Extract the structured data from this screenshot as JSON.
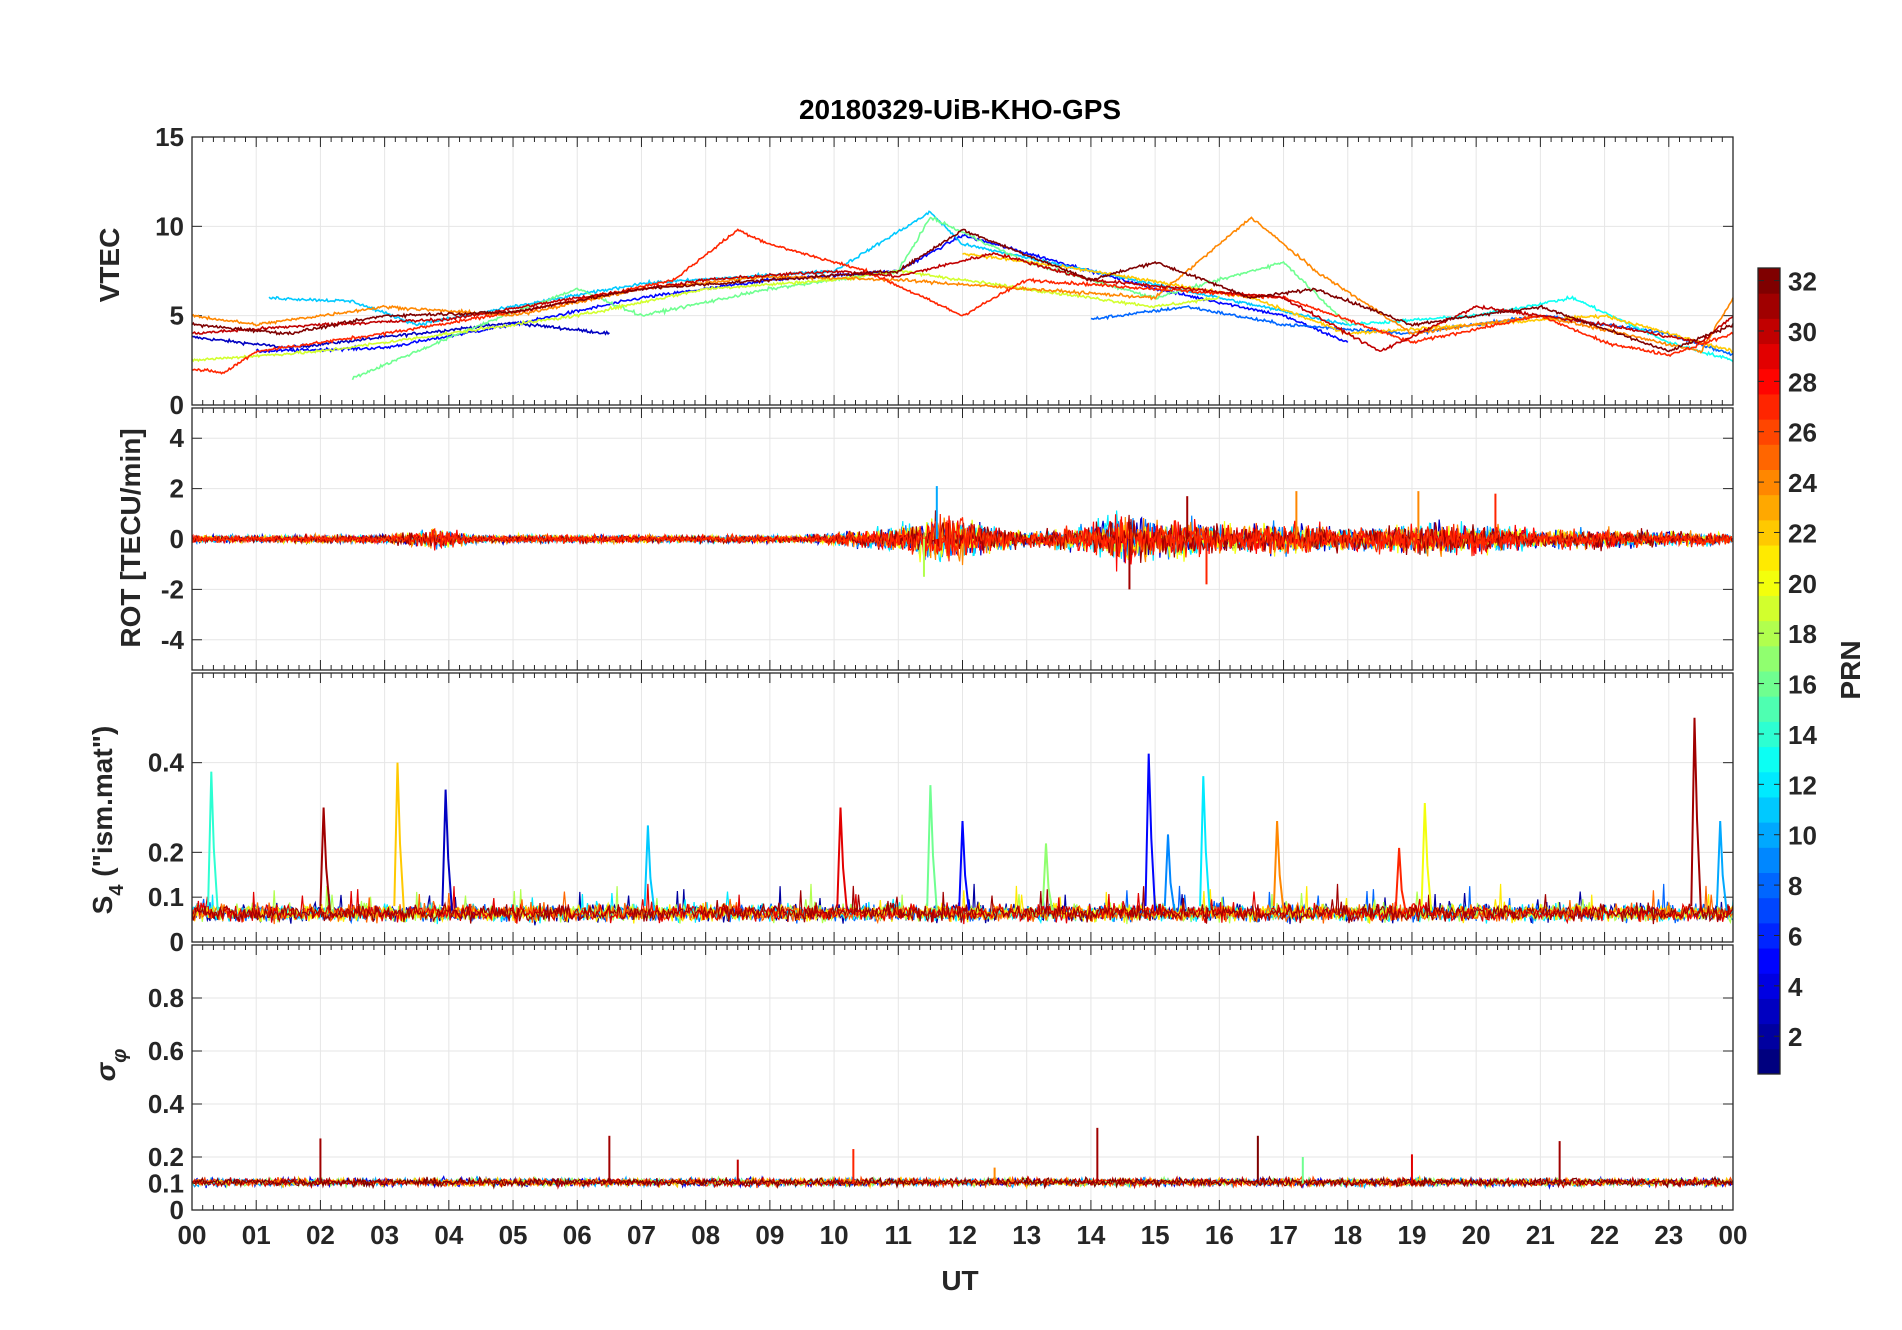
{
  "title": "20180329-UiB-KHO-GPS",
  "xaxis": {
    "label": "UT",
    "ticks": [
      "00",
      "01",
      "02",
      "03",
      "04",
      "05",
      "06",
      "07",
      "08",
      "09",
      "10",
      "11",
      "12",
      "13",
      "14",
      "15",
      "16",
      "17",
      "18",
      "19",
      "20",
      "21",
      "22",
      "23",
      "00"
    ],
    "range_hours": [
      0,
      24
    ]
  },
  "colorbar": {
    "label": "PRN",
    "range": [
      1,
      32
    ],
    "ticks": [
      "2",
      "4",
      "6",
      "8",
      "10",
      "12",
      "14",
      "16",
      "18",
      "20",
      "22",
      "24",
      "26",
      "28",
      "30",
      "32"
    ],
    "colormap": "jet",
    "colors": [
      "#00007f",
      "#0000ff",
      "#007fff",
      "#00ffff",
      "#7fff7f",
      "#ffff00",
      "#ff7f00",
      "#ff0000",
      "#7f0000"
    ]
  },
  "chart_data": [
    {
      "type": "line",
      "name": "vtec-panel",
      "ylabel": "VTEC",
      "ylim": [
        0,
        15
      ],
      "yticks": [
        "0",
        "5",
        "10",
        "15"
      ],
      "grid": true,
      "series_trend": [
        {
          "prn": 3,
          "x": [
            0.0,
            1.5,
            3.0,
            5.0,
            6.5
          ],
          "y": [
            3.8,
            3.2,
            3.8,
            4.6,
            4.0
          ]
        },
        {
          "prn": 5,
          "x": [
            1.0,
            3.0,
            5.0,
            7.0,
            9.0,
            11.0,
            12.0,
            13.0,
            15.0,
            17.0,
            18.0
          ],
          "y": [
            3.0,
            3.2,
            4.5,
            6.0,
            7.0,
            7.5,
            9.5,
            8.5,
            6.5,
            5.0,
            3.5
          ]
        },
        {
          "prn": 8,
          "x": [
            14.0,
            15.5,
            17.0,
            19.0,
            21.0,
            23.0,
            24.0
          ],
          "y": [
            4.8,
            5.5,
            4.5,
            4.0,
            5.0,
            4.0,
            2.8
          ]
        },
        {
          "prn": 11,
          "x": [
            1.2,
            2.5,
            3.5,
            5.0,
            7.0,
            10.0,
            11.5,
            12.0,
            14.0,
            16.0,
            18.0
          ],
          "y": [
            6.0,
            5.8,
            4.5,
            5.5,
            6.8,
            7.5,
            10.8,
            9.0,
            7.5,
            6.0,
            4.5
          ]
        },
        {
          "prn": 13,
          "x": [
            18.0,
            20.0,
            21.5,
            23.0,
            24.0
          ],
          "y": [
            4.5,
            5.0,
            6.0,
            3.5,
            2.5
          ]
        },
        {
          "prn": 16,
          "x": [
            2.5,
            4.5,
            6.0,
            7.0,
            9.0,
            11.0,
            11.5,
            13.0,
            15.0,
            17.0,
            18.0
          ],
          "y": [
            1.5,
            4.5,
            6.5,
            5.0,
            6.5,
            7.5,
            10.5,
            8.0,
            6.0,
            8.0,
            4.5
          ]
        },
        {
          "prn": 19,
          "x": [
            0.0,
            2.0,
            4.0,
            6.0,
            8.0,
            10.0,
            11.0,
            13.0,
            15.0,
            16.0
          ],
          "y": [
            2.5,
            3.0,
            4.0,
            5.0,
            6.5,
            7.0,
            7.5,
            6.5,
            5.5,
            6.0
          ]
        },
        {
          "prn": 22,
          "x": [
            12.0,
            14.0,
            16.5,
            18.0,
            20.0,
            22.0,
            24.0
          ],
          "y": [
            8.5,
            7.5,
            6.0,
            4.0,
            4.5,
            5.0,
            3.0
          ]
        },
        {
          "prn": 24,
          "x": [
            0.0,
            1.0,
            3.0,
            5.0,
            7.0,
            9.0,
            11.0,
            13.0,
            15.0,
            16.5,
            17.5,
            19.0,
            21.0,
            23.5,
            24.0
          ],
          "y": [
            5.0,
            4.5,
            5.5,
            5.0,
            6.5,
            7.2,
            7.0,
            6.5,
            6.0,
            10.5,
            7.5,
            4.0,
            5.0,
            3.0,
            6.0
          ]
        },
        {
          "prn": 27,
          "x": [
            0.0,
            0.5,
            1.0,
            3.0,
            5.5,
            7.5,
            8.5,
            9.0,
            10.5,
            12.0,
            13.0,
            15.0,
            17.0,
            19.0,
            21.0,
            22.0,
            23.0,
            24.0
          ],
          "y": [
            2.0,
            1.8,
            3.0,
            4.0,
            5.5,
            7.0,
            9.8,
            9.0,
            7.5,
            5.0,
            7.0,
            6.5,
            6.0,
            3.5,
            5.0,
            3.5,
            2.8,
            4.0
          ]
        },
        {
          "prn": 30,
          "x": [
            0.0,
            2.0,
            4.0,
            6.0,
            8.0,
            10.0,
            11.0,
            12.5,
            14.0,
            15.5,
            17.0,
            18.5,
            20.0,
            22.0,
            23.5,
            24.0
          ],
          "y": [
            4.0,
            4.5,
            4.8,
            6.0,
            7.0,
            7.5,
            7.2,
            8.5,
            7.0,
            6.5,
            6.0,
            3.0,
            5.5,
            4.5,
            3.5,
            5.0
          ]
        },
        {
          "prn": 32,
          "x": [
            0.0,
            1.5,
            3.0,
            5.0,
            7.0,
            9.0,
            11.0,
            12.0,
            14.0,
            15.0,
            16.5,
            17.5,
            19.0,
            21.0,
            23.0,
            24.0
          ],
          "y": [
            4.5,
            4.0,
            5.0,
            5.2,
            6.5,
            7.0,
            7.5,
            9.8,
            7.0,
            8.0,
            6.0,
            6.5,
            4.5,
            5.5,
            3.0,
            4.5
          ]
        }
      ]
    },
    {
      "type": "line",
      "name": "rot-panel",
      "ylabel": "ROT [TECU/min]",
      "ylim": [
        -5.2,
        5.2
      ],
      "yticks": [
        "-4",
        "-2",
        "0",
        "2",
        "4"
      ],
      "grid": true,
      "noise_envelope": {
        "x": [
          0,
          3,
          3.8,
          4.5,
          9.5,
          11.0,
          11.5,
          12.0,
          12.5,
          13.0,
          14.0,
          14.5,
          15.0,
          15.5,
          16.0,
          17.0,
          18.0,
          19.0,
          20.0,
          21.0,
          22.0,
          24.0
        ],
        "amplitude": [
          0.25,
          0.3,
          0.7,
          0.3,
          0.25,
          0.8,
          1.6,
          1.6,
          0.9,
          0.5,
          1.0,
          1.8,
          1.2,
          1.3,
          1.0,
          1.0,
          0.8,
          1.1,
          1.1,
          0.6,
          0.7,
          0.35
        ]
      },
      "spikes": [
        {
          "x": 11.6,
          "y": 2.1
        },
        {
          "x": 14.6,
          "y": -2.0
        },
        {
          "x": 15.5,
          "y": 1.7
        },
        {
          "x": 15.8,
          "y": -1.8
        },
        {
          "x": 17.2,
          "y": 1.9
        },
        {
          "x": 19.1,
          "y": 1.9
        },
        {
          "x": 20.3,
          "y": 1.8
        },
        {
          "x": 11.4,
          "y": -1.5
        }
      ]
    },
    {
      "type": "line",
      "name": "s4-panel",
      "ylabel": "S_4 (\"ism.mat\")",
      "ylabel_main": "S",
      "ylabel_sub": "4",
      "ylabel_rest": " (\"ism.mat\")",
      "ylim": [
        0,
        0.6
      ],
      "yticks": [
        "0",
        "0.1",
        "0.2",
        "0.4"
      ],
      "ytick_values": [
        0,
        0.1,
        0.2,
        0.4
      ],
      "grid": true,
      "baseline_range": [
        0.03,
        0.1
      ],
      "spikes": [
        {
          "x": 0.3,
          "y": 0.38,
          "prn": 14
        },
        {
          "x": 2.05,
          "y": 0.3,
          "prn": 31
        },
        {
          "x": 3.2,
          "y": 0.4,
          "prn": 22
        },
        {
          "x": 3.95,
          "y": 0.34,
          "prn": 3
        },
        {
          "x": 7.1,
          "y": 0.26,
          "prn": 11
        },
        {
          "x": 10.1,
          "y": 0.3,
          "prn": 29
        },
        {
          "x": 11.5,
          "y": 0.35,
          "prn": 16
        },
        {
          "x": 12.0,
          "y": 0.27,
          "prn": 5
        },
        {
          "x": 13.3,
          "y": 0.22,
          "prn": 17
        },
        {
          "x": 14.9,
          "y": 0.42,
          "prn": 5
        },
        {
          "x": 15.2,
          "y": 0.24,
          "prn": 9
        },
        {
          "x": 15.75,
          "y": 0.37,
          "prn": 12
        },
        {
          "x": 16.9,
          "y": 0.27,
          "prn": 24
        },
        {
          "x": 18.8,
          "y": 0.21,
          "prn": 27
        },
        {
          "x": 19.2,
          "y": 0.31,
          "prn": 20
        },
        {
          "x": 23.4,
          "y": 0.5,
          "prn": 31
        },
        {
          "x": 23.8,
          "y": 0.27,
          "prn": 10
        }
      ]
    },
    {
      "type": "line",
      "name": "sigma-phi-panel",
      "ylabel": "σ_φ",
      "ylabel_main": "σ",
      "ylabel_sub": "φ",
      "ylim": [
        0,
        1
      ],
      "yticks": [
        "0",
        "0.1",
        "0.2",
        "0.4",
        "0.6",
        "0.8"
      ],
      "ytick_values": [
        0,
        0.1,
        0.2,
        0.4,
        0.6,
        0.8
      ],
      "grid": true,
      "baseline_range": [
        0.08,
        0.13
      ],
      "spikes": [
        {
          "x": 2.0,
          "y": 0.27,
          "prn": 31
        },
        {
          "x": 6.5,
          "y": 0.28,
          "prn": 31
        },
        {
          "x": 8.5,
          "y": 0.19,
          "prn": 30
        },
        {
          "x": 10.3,
          "y": 0.23,
          "prn": 27
        },
        {
          "x": 14.1,
          "y": 0.31,
          "prn": 31
        },
        {
          "x": 16.6,
          "y": 0.28,
          "prn": 32
        },
        {
          "x": 17.3,
          "y": 0.2,
          "prn": 16
        },
        {
          "x": 19.0,
          "y": 0.21,
          "prn": 29
        },
        {
          "x": 21.3,
          "y": 0.26,
          "prn": 31
        },
        {
          "x": 12.5,
          "y": 0.16,
          "prn": 24
        }
      ]
    }
  ]
}
